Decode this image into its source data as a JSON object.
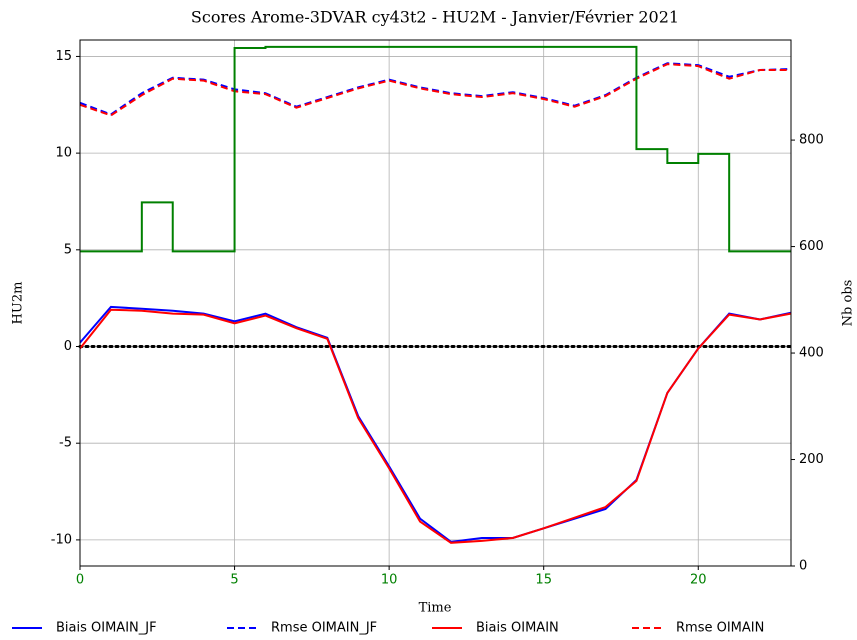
{
  "chart_data": {
    "type": "line",
    "title": "Scores Arome-3DVAR cy43t2  - HU2M -  Janvier/Février 2021",
    "xlabel": "Time",
    "ylabel": "HU2m",
    "y2label": "Nb obs",
    "x": [
      0,
      1,
      2,
      3,
      4,
      5,
      6,
      7,
      8,
      9,
      10,
      11,
      12,
      13,
      14,
      15,
      16,
      17,
      18,
      19,
      20,
      21,
      22,
      23
    ],
    "xlim": [
      0,
      23
    ],
    "xticks": [
      0,
      5,
      10,
      15,
      20
    ],
    "xtick_color": "#008000",
    "ylim": [
      -11.35,
      15.85
    ],
    "yticks": [
      -10,
      -5,
      0,
      5,
      10,
      15
    ],
    "y2lim": [
      0,
      988
    ],
    "y2ticks": [
      0,
      200,
      400,
      600,
      800
    ],
    "grid": true,
    "hlines": [
      0
    ],
    "legend": "bottom",
    "series": [
      {
        "name": "Biais OIMAIN_JF",
        "color": "#0000ff",
        "style": "solid",
        "values": [
          0.2,
          2.05,
          1.95,
          1.85,
          1.7,
          1.3,
          1.7,
          1.0,
          0.45,
          -3.6,
          -6.2,
          -8.9,
          -10.1,
          -9.9,
          -9.9,
          -9.4,
          -8.9,
          -8.4,
          -6.9,
          -2.4,
          -0.1,
          1.7,
          1.4,
          1.75
        ]
      },
      {
        "name": "Rmse OIMAIN_JF",
        "color": "#0000ff",
        "style": "dashed",
        "values": [
          12.6,
          12.0,
          13.1,
          13.9,
          13.8,
          13.3,
          13.1,
          12.4,
          12.9,
          13.4,
          13.8,
          13.4,
          13.1,
          12.95,
          13.15,
          12.85,
          12.45,
          13.0,
          13.9,
          14.65,
          14.55,
          13.95,
          14.3,
          14.35
        ]
      },
      {
        "name": "Biais OIMAIN",
        "color": "#ff0000",
        "style": "solid",
        "values": [
          -0.1,
          1.9,
          1.85,
          1.7,
          1.65,
          1.2,
          1.6,
          0.95,
          0.4,
          -3.7,
          -6.3,
          -9.05,
          -10.15,
          -10.05,
          -9.9,
          -9.4,
          -8.85,
          -8.3,
          -6.95,
          -2.4,
          -0.1,
          1.65,
          1.4,
          1.7
        ]
      },
      {
        "name": "Rmse OIMAIN",
        "color": "#ff0000",
        "style": "dashed",
        "values": [
          12.5,
          11.95,
          13.0,
          13.85,
          13.75,
          13.2,
          13.05,
          12.35,
          12.85,
          13.35,
          13.75,
          13.35,
          13.05,
          12.9,
          13.1,
          12.8,
          12.4,
          12.95,
          13.85,
          14.6,
          14.5,
          13.85,
          14.3,
          14.3
        ]
      },
      {
        "color": "#008000",
        "style": "steps",
        "axis": "y2",
        "values": [
          591,
          591,
          683,
          591,
          591,
          973,
          975,
          975,
          975,
          975,
          975,
          975,
          975,
          975,
          975,
          975,
          975,
          975,
          783,
          757,
          774,
          591,
          591,
          591
        ]
      }
    ]
  }
}
